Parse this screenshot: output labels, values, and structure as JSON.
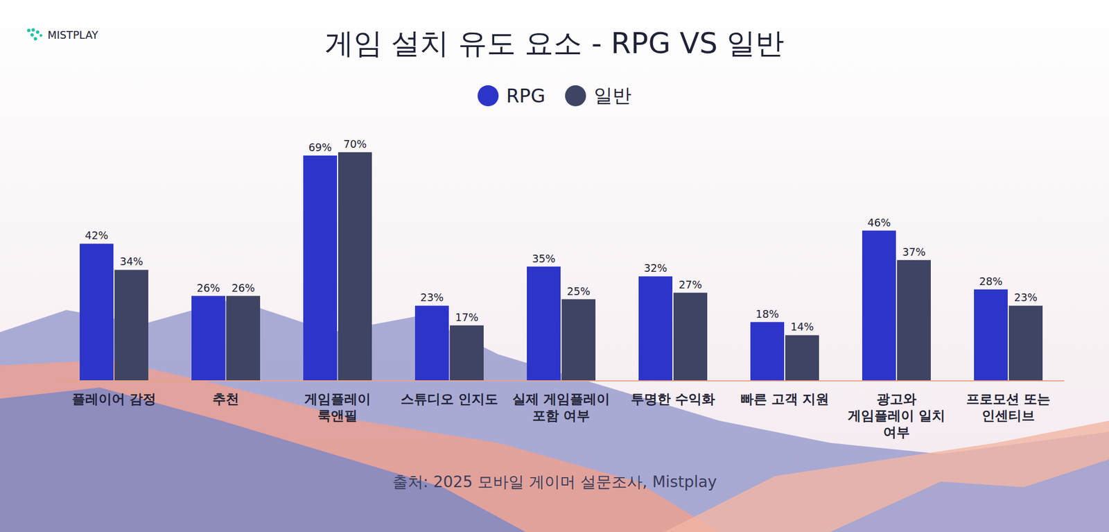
{
  "chart_data": {
    "type": "bar",
    "title": "게임 설치 유도 요소 - RPG VS 일반",
    "logo": "MISTPLAY",
    "source": "출처: 2025 모바일 게이머 설문조사, Mistplay",
    "categories": [
      "플레이어 감정",
      "추천",
      "게임플레이 룩앤필",
      "스튜디오 인지도",
      "실제 게임플레이 포함 여부",
      "투명한 수익화",
      "빠른 고객 지원",
      "광고와 게임플레이 일치 여부",
      "프로모션 또는 인센티브"
    ],
    "series": [
      {
        "name": "RPG",
        "color": "#2d35c9",
        "values": [
          42,
          26,
          69,
          23,
          35,
          32,
          18,
          46,
          28
        ],
        "value_labels": [
          "42%",
          "26%",
          "69%",
          "23%",
          "35%",
          "32%",
          "18%",
          "46%",
          "28%"
        ]
      },
      {
        "name": "일반",
        "color": "#3f4463",
        "values": [
          34,
          26,
          70,
          17,
          25,
          27,
          14,
          37,
          23
        ],
        "value_labels": [
          "34%",
          "26%",
          "70%",
          "17%",
          "25%",
          "27%",
          "14%",
          "37%",
          "23%"
        ]
      }
    ],
    "ylim": [
      0,
      70
    ],
    "grid": false,
    "legend": "top",
    "data_labels": true,
    "tick_labels": "x"
  }
}
